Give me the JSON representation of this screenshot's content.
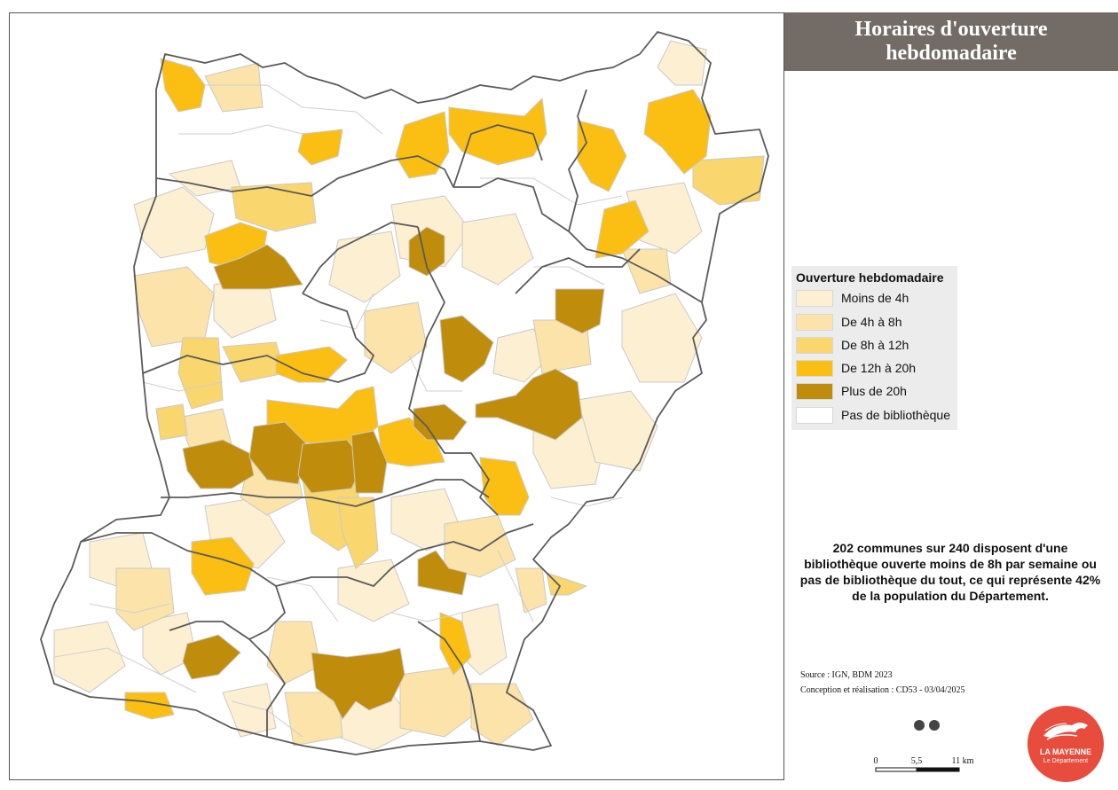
{
  "title": {
    "line1": "Horaires d'ouverture",
    "line2": "hebdomadaire"
  },
  "legend": {
    "title": "Ouverture hebdomadaire",
    "items": [
      {
        "label": "Moins de 4h",
        "color": "#fdf0d2"
      },
      {
        "label": "De 4h à 8h",
        "color": "#fbe3aa"
      },
      {
        "label": "De 8h à 12h",
        "color": "#fad66f"
      },
      {
        "label": "De 12h à 20h",
        "color": "#fbbf14"
      },
      {
        "label": "Plus de 20h",
        "color": "#bf8d0b"
      },
      {
        "label": "Pas de bibliothèque",
        "color": "#ffffff"
      }
    ]
  },
  "statistic": "202 communes sur 240 disposent d'une bibliothèque ouverte moins de 8h par semaine ou pas de bibliothèque du tout, ce qui représente 42% de la population du Département.",
  "source": "Source : IGN, BDM 2023",
  "credits": "Conception et réalisation : CD53 - 03/04/2025",
  "scale": {
    "labels": [
      "0",
      "5,5",
      "11 km"
    ]
  },
  "logo": {
    "name": "LA MAYENNE",
    "subtitle": "Le Département"
  },
  "colors": {
    "border": "#5a5a5a",
    "commune_line": "#c9c9c9",
    "title_bg": "#736b66",
    "logo_bg": "#e74c3c"
  }
}
